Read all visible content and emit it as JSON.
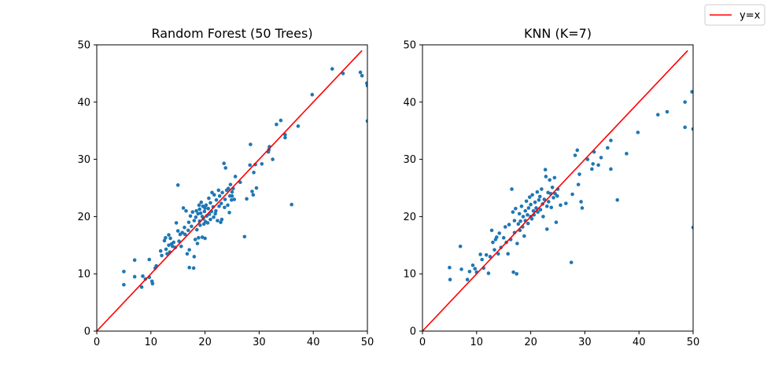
{
  "chart_data": [
    {
      "type": "scatter",
      "title": "Random Forest (50 Trees)",
      "xlabel": "",
      "ylabel": "",
      "xlim": [
        0,
        50
      ],
      "ylim": [
        0,
        50
      ],
      "xticks": [
        "0",
        "10",
        "20",
        "30",
        "40",
        "50"
      ],
      "yticks": [
        "0",
        "10",
        "20",
        "30",
        "40",
        "50"
      ],
      "grid": false,
      "point_color": "#1f77b4",
      "reference_line": {
        "label": "y=x",
        "color": "#ff0000",
        "from": [
          0,
          0
        ],
        "to": [
          49,
          49
        ]
      },
      "points": [
        [
          5.0,
          10.4
        ],
        [
          5.0,
          8.1
        ],
        [
          7.0,
          12.4
        ],
        [
          7.0,
          9.5
        ],
        [
          8.3,
          7.7
        ],
        [
          8.5,
          9.6
        ],
        [
          9.0,
          9.1
        ],
        [
          9.7,
          12.5
        ],
        [
          9.7,
          9.4
        ],
        [
          10.2,
          8.7
        ],
        [
          10.3,
          8.3
        ],
        [
          10.8,
          11.0
        ],
        [
          11.0,
          11.4
        ],
        [
          11.8,
          14.0
        ],
        [
          12.0,
          13.2
        ],
        [
          12.5,
          15.8
        ],
        [
          12.7,
          16.3
        ],
        [
          12.8,
          14.3
        ],
        [
          13.0,
          13.5
        ],
        [
          13.3,
          15.0
        ],
        [
          13.3,
          16.8
        ],
        [
          13.5,
          13.8
        ],
        [
          13.6,
          16.2
        ],
        [
          13.8,
          15.2
        ],
        [
          14.0,
          14.8
        ],
        [
          14.2,
          15.5
        ],
        [
          14.5,
          14.6
        ],
        [
          14.7,
          18.9
        ],
        [
          15.0,
          25.5
        ],
        [
          15.0,
          17.5
        ],
        [
          15.2,
          15.7
        ],
        [
          15.4,
          16.9
        ],
        [
          15.6,
          14.8
        ],
        [
          15.8,
          17.2
        ],
        [
          16.0,
          21.5
        ],
        [
          16.2,
          18.1
        ],
        [
          16.3,
          16.9
        ],
        [
          16.5,
          21.0
        ],
        [
          16.7,
          13.5
        ],
        [
          16.9,
          17.6
        ],
        [
          17.0,
          19.0
        ],
        [
          17.1,
          14.2
        ],
        [
          17.1,
          11.1
        ],
        [
          17.3,
          20.1
        ],
        [
          17.5,
          18.3
        ],
        [
          17.7,
          20.8
        ],
        [
          17.9,
          11.0
        ],
        [
          18.0,
          19.3
        ],
        [
          18.0,
          13.0
        ],
        [
          18.2,
          16.0
        ],
        [
          18.3,
          19.9
        ],
        [
          18.4,
          21.0
        ],
        [
          18.5,
          17.7
        ],
        [
          18.6,
          15.3
        ],
        [
          18.7,
          20.5
        ],
        [
          18.8,
          16.3
        ],
        [
          18.9,
          22.0
        ],
        [
          19.0,
          19.2
        ],
        [
          19.0,
          21.3
        ],
        [
          19.1,
          18.5
        ],
        [
          19.2,
          20.6
        ],
        [
          19.3,
          22.5
        ],
        [
          19.5,
          16.4
        ],
        [
          19.5,
          20.0
        ],
        [
          19.6,
          21.8
        ],
        [
          19.7,
          19.6
        ],
        [
          19.8,
          18.7
        ],
        [
          19.9,
          20.9
        ],
        [
          20.0,
          16.2
        ],
        [
          20.0,
          21.5
        ],
        [
          20.1,
          19.1
        ],
        [
          20.2,
          22.0
        ],
        [
          20.3,
          20.1
        ],
        [
          20.5,
          18.9
        ],
        [
          20.6,
          21.4
        ],
        [
          20.7,
          23.2
        ],
        [
          20.8,
          20.4
        ],
        [
          21.0,
          19.5
        ],
        [
          21.0,
          22.4
        ],
        [
          21.2,
          20.9
        ],
        [
          21.3,
          24.2
        ],
        [
          21.5,
          21.7
        ],
        [
          21.6,
          19.9
        ],
        [
          21.7,
          23.8
        ],
        [
          21.9,
          20.5
        ],
        [
          22.0,
          21.0
        ],
        [
          22.1,
          22.9
        ],
        [
          22.3,
          19.3
        ],
        [
          22.5,
          24.6
        ],
        [
          22.6,
          21.8
        ],
        [
          22.7,
          23.6
        ],
        [
          22.9,
          19.0
        ],
        [
          23.0,
          22.3
        ],
        [
          23.1,
          19.5
        ],
        [
          23.2,
          24.2
        ],
        [
          23.5,
          29.3
        ],
        [
          23.6,
          21.6
        ],
        [
          23.7,
          23.0
        ],
        [
          23.8,
          28.5
        ],
        [
          24.0,
          24.6
        ],
        [
          24.2,
          22.0
        ],
        [
          24.3,
          24.9
        ],
        [
          24.5,
          20.7
        ],
        [
          24.6,
          23.6
        ],
        [
          24.7,
          25.6
        ],
        [
          24.9,
          22.9
        ],
        [
          25.0,
          24.3
        ],
        [
          25.0,
          23.6
        ],
        [
          25.2,
          24.9
        ],
        [
          25.4,
          23.0
        ],
        [
          25.6,
          27.0
        ],
        [
          26.5,
          26.0
        ],
        [
          27.3,
          16.5
        ],
        [
          27.7,
          23.1
        ],
        [
          28.3,
          29.0
        ],
        [
          28.4,
          32.6
        ],
        [
          28.7,
          24.4
        ],
        [
          28.9,
          23.8
        ],
        [
          29.0,
          27.7
        ],
        [
          29.3,
          29.1
        ],
        [
          29.5,
          25.0
        ],
        [
          30.5,
          29.2
        ],
        [
          31.7,
          31.3
        ],
        [
          31.8,
          31.7
        ],
        [
          31.9,
          32.2
        ],
        [
          32.5,
          30.0
        ],
        [
          33.2,
          36.1
        ],
        [
          34.0,
          36.8
        ],
        [
          34.8,
          33.8
        ],
        [
          34.8,
          34.3
        ],
        [
          36.0,
          22.1
        ],
        [
          37.2,
          35.8
        ],
        [
          39.8,
          41.3
        ],
        [
          43.5,
          45.8
        ],
        [
          45.5,
          45.0
        ],
        [
          48.7,
          45.2
        ],
        [
          49.0,
          44.6
        ],
        [
          49.9,
          43.3
        ],
        [
          50.0,
          42.9
        ],
        [
          50.0,
          36.7
        ]
      ]
    },
    {
      "type": "scatter",
      "title": "KNN (K=7)",
      "xlabel": "",
      "ylabel": "",
      "xlim": [
        0,
        50
      ],
      "ylim": [
        0,
        50
      ],
      "xticks": [
        "0",
        "10",
        "20",
        "30",
        "40",
        "50"
      ],
      "yticks": [
        "0",
        "10",
        "20",
        "30",
        "40",
        "50"
      ],
      "grid": false,
      "point_color": "#1f77b4",
      "reference_line": {
        "label": "y=x",
        "color": "#ff0000",
        "from": [
          0,
          0
        ],
        "to": [
          49,
          49
        ]
      },
      "points": [
        [
          5.0,
          11.1
        ],
        [
          5.1,
          9.0
        ],
        [
          7.0,
          14.8
        ],
        [
          7.2,
          10.8
        ],
        [
          8.3,
          9.0
        ],
        [
          8.7,
          10.4
        ],
        [
          9.3,
          11.5
        ],
        [
          9.7,
          10.9
        ],
        [
          10.0,
          10.3
        ],
        [
          10.7,
          13.4
        ],
        [
          11.0,
          12.5
        ],
        [
          11.3,
          11.0
        ],
        [
          11.8,
          13.3
        ],
        [
          12.2,
          10.1
        ],
        [
          12.5,
          13.0
        ],
        [
          12.8,
          17.6
        ],
        [
          13.0,
          15.5
        ],
        [
          13.3,
          14.2
        ],
        [
          13.5,
          16.0
        ],
        [
          13.7,
          16.4
        ],
        [
          14.0,
          13.5
        ],
        [
          14.2,
          17.1
        ],
        [
          14.5,
          14.6
        ],
        [
          15.0,
          16.3
        ],
        [
          15.3,
          18.2
        ],
        [
          15.5,
          15.5
        ],
        [
          15.8,
          13.5
        ],
        [
          16.0,
          18.6
        ],
        [
          16.3,
          16.0
        ],
        [
          16.5,
          24.8
        ],
        [
          16.7,
          20.8
        ],
        [
          16.8,
          10.3
        ],
        [
          17.0,
          19.3
        ],
        [
          17.0,
          17.2
        ],
        [
          17.2,
          21.4
        ],
        [
          17.4,
          10.0
        ],
        [
          17.5,
          15.3
        ],
        [
          17.7,
          18.7
        ],
        [
          17.9,
          20.5
        ],
        [
          18.0,
          17.6
        ],
        [
          18.1,
          19.2
        ],
        [
          18.3,
          21.8
        ],
        [
          18.5,
          18.2
        ],
        [
          18.6,
          20.0
        ],
        [
          18.8,
          16.6
        ],
        [
          19.0,
          21.0
        ],
        [
          19.0,
          19.3
        ],
        [
          19.2,
          22.7
        ],
        [
          19.4,
          20.3
        ],
        [
          19.5,
          18.8
        ],
        [
          19.6,
          21.5
        ],
        [
          19.8,
          23.4
        ],
        [
          20.0,
          20.0
        ],
        [
          20.0,
          22.1
        ],
        [
          20.2,
          19.6
        ],
        [
          20.3,
          23.8
        ],
        [
          20.5,
          21.0
        ],
        [
          20.6,
          20.3
        ],
        [
          20.8,
          22.5
        ],
        [
          21.0,
          21.5
        ],
        [
          21.2,
          24.3
        ],
        [
          21.3,
          20.8
        ],
        [
          21.5,
          22.9
        ],
        [
          21.7,
          23.5
        ],
        [
          21.8,
          21.2
        ],
        [
          22.0,
          24.8
        ],
        [
          22.2,
          22.2
        ],
        [
          22.3,
          20.0
        ],
        [
          22.5,
          23.0
        ],
        [
          22.7,
          28.2
        ],
        [
          22.8,
          27.0
        ],
        [
          23.0,
          21.8
        ],
        [
          23.0,
          17.8
        ],
        [
          23.2,
          24.2
        ],
        [
          23.3,
          22.6
        ],
        [
          23.5,
          26.4
        ],
        [
          23.7,
          24.0
        ],
        [
          23.8,
          21.6
        ],
        [
          24.0,
          25.1
        ],
        [
          24.2,
          23.3
        ],
        [
          24.4,
          26.8
        ],
        [
          24.5,
          24.0
        ],
        [
          24.7,
          19.0
        ],
        [
          24.9,
          23.6
        ],
        [
          25.0,
          24.8
        ],
        [
          25.5,
          22.0
        ],
        [
          26.5,
          22.3
        ],
        [
          27.5,
          12.0
        ],
        [
          27.7,
          23.9
        ],
        [
          28.2,
          30.7
        ],
        [
          28.6,
          31.6
        ],
        [
          28.8,
          25.6
        ],
        [
          29.0,
          27.4
        ],
        [
          29.3,
          22.6
        ],
        [
          29.5,
          21.5
        ],
        [
          30.5,
          30.0
        ],
        [
          31.3,
          28.3
        ],
        [
          31.5,
          29.2
        ],
        [
          31.7,
          31.3
        ],
        [
          32.5,
          29.0
        ],
        [
          33.0,
          30.3
        ],
        [
          34.2,
          32.0
        ],
        [
          34.8,
          33.3
        ],
        [
          34.8,
          28.3
        ],
        [
          36.0,
          22.9
        ],
        [
          37.7,
          31.0
        ],
        [
          39.8,
          34.7
        ],
        [
          43.5,
          37.8
        ],
        [
          45.2,
          38.3
        ],
        [
          48.5,
          40.0
        ],
        [
          48.5,
          35.6
        ],
        [
          49.8,
          41.8
        ],
        [
          50.0,
          35.3
        ],
        [
          50.0,
          18.1
        ]
      ]
    }
  ],
  "legend": {
    "placement": "top-right",
    "entries": [
      {
        "label": "y=x",
        "color": "#ff0000"
      }
    ]
  }
}
